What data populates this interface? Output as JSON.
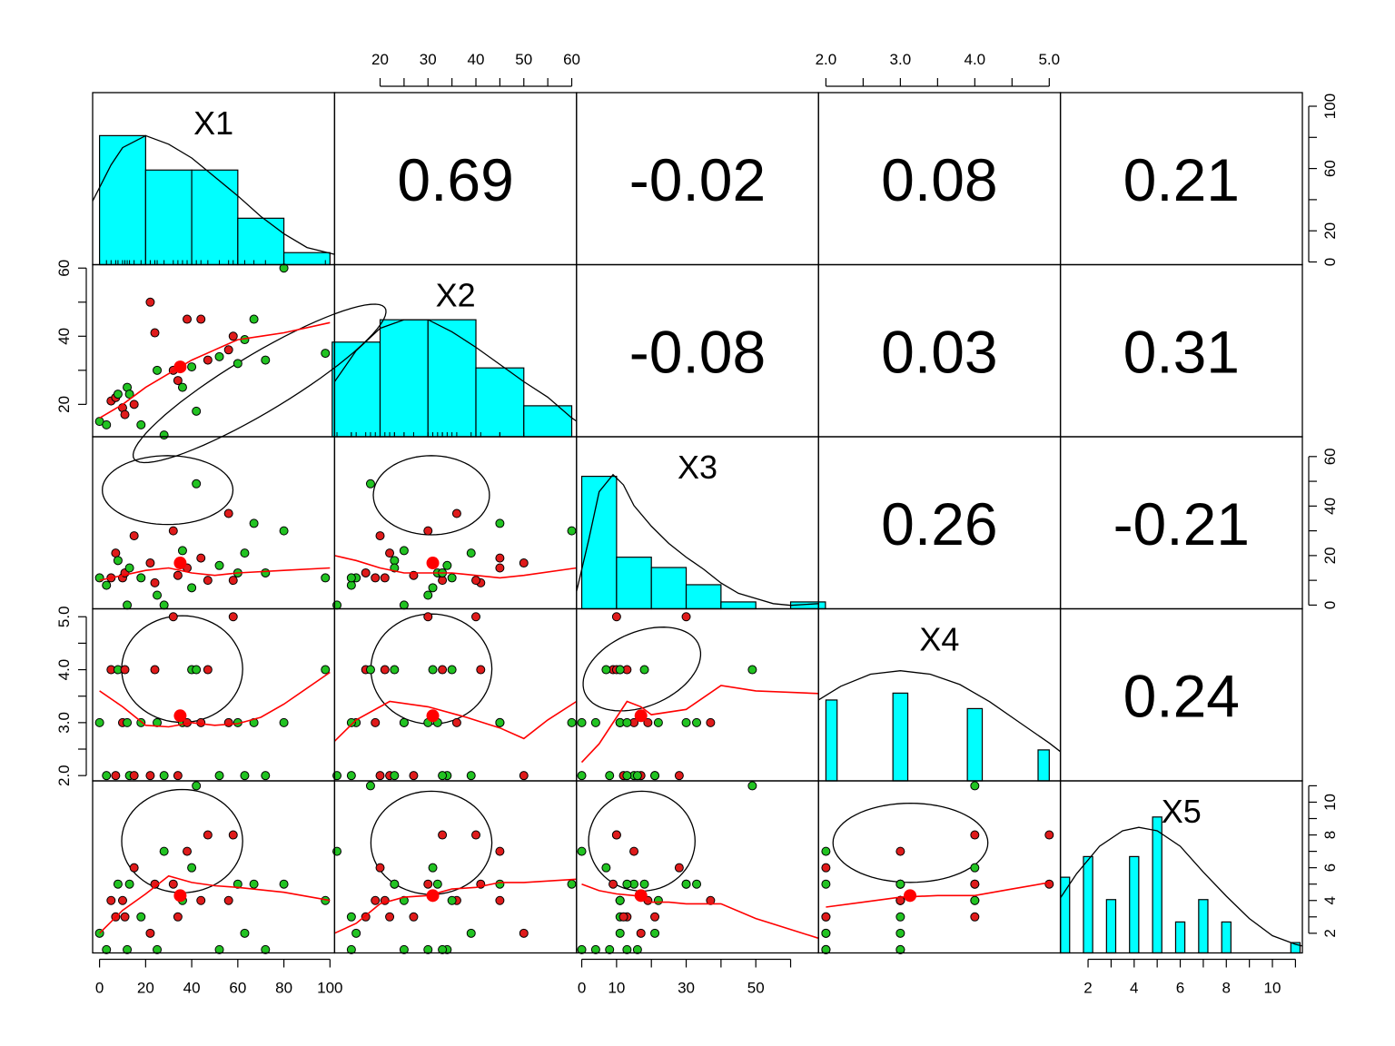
{
  "chart_data": {
    "type": "scatter",
    "kind": "pairs-panel (scatterplot matrix with histograms, density curves, loess fits, correlation ellipses and correlations)",
    "variables": [
      "X1",
      "X2",
      "X3",
      "X4",
      "X5"
    ],
    "ranges": {
      "X1": [
        -3,
        102
      ],
      "X2": [
        10.5,
        61
      ],
      "X3": [
        -1.5,
        68
      ],
      "X4": [
        1.9,
        5.15
      ],
      "X5": [
        0.8,
        11.3
      ]
    },
    "axes": {
      "bottom": [
        {
          "var": "X1",
          "ticks": [
            0,
            20,
            40,
            60,
            80,
            100
          ]
        },
        {
          "var": "X3",
          "ticks": [
            0,
            10,
            30,
            50
          ],
          "minor_ticks": [
            20,
            40,
            60
          ]
        },
        {
          "var": "X5",
          "ticks": [
            2,
            4,
            6,
            8,
            10
          ],
          "minor_ticks": [
            3,
            5,
            7,
            9,
            11
          ]
        }
      ],
      "top": [
        {
          "var": "X2",
          "ticks": [
            20,
            30,
            40,
            50,
            60
          ],
          "minor_ticks": [
            25,
            35,
            45,
            55
          ]
        },
        {
          "var": "X4",
          "ticks": [
            2.0,
            3.0,
            4.0,
            5.0
          ],
          "minor_ticks": [
            2.5,
            3.5,
            4.5
          ]
        }
      ],
      "left": [
        {
          "var": "X2",
          "ticks": [
            20,
            40,
            60
          ],
          "minor_ticks": [
            30,
            50
          ]
        },
        {
          "var": "X4",
          "ticks": [
            2.0,
            3.0,
            4.0,
            5.0
          ],
          "minor_ticks": [
            2.5,
            3.5,
            4.5
          ]
        }
      ],
      "right": [
        {
          "var": "X1",
          "ticks": [
            0,
            20,
            60,
            100
          ],
          "minor_ticks": [
            40,
            80
          ]
        },
        {
          "var": "X3",
          "ticks": [
            0,
            20,
            40,
            60
          ],
          "minor_ticks": [
            10,
            30,
            50
          ]
        },
        {
          "var": "X5",
          "ticks": [
            2,
            4,
            6,
            8,
            10
          ],
          "minor_ticks": [
            3,
            5,
            7,
            9,
            11
          ]
        }
      ]
    },
    "correlations": [
      {
        "row": 0,
        "col": 1,
        "value": "0.69"
      },
      {
        "row": 0,
        "col": 2,
        "value": "-0.02"
      },
      {
        "row": 0,
        "col": 3,
        "value": "0.08"
      },
      {
        "row": 0,
        "col": 4,
        "value": "0.21"
      },
      {
        "row": 1,
        "col": 2,
        "value": "-0.08"
      },
      {
        "row": 1,
        "col": 3,
        "value": "0.03"
      },
      {
        "row": 1,
        "col": 4,
        "value": "0.31"
      },
      {
        "row": 2,
        "col": 3,
        "value": "0.26"
      },
      {
        "row": 2,
        "col": 4,
        "value": "-0.21"
      },
      {
        "row": 3,
        "col": 4,
        "value": "0.24"
      }
    ],
    "histograms": {
      "X1": {
        "breaks": [
          0,
          20,
          40,
          60,
          80,
          100
        ],
        "heights": [
          0.75,
          0.55,
          0.55,
          0.27,
          0.07
        ]
      },
      "X2": {
        "breaks": [
          10,
          20,
          30,
          40,
          50,
          60
        ],
        "heights": [
          0.55,
          0.68,
          0.68,
          0.4,
          0.18
        ]
      },
      "X3": {
        "breaks": [
          0,
          10,
          20,
          30,
          40,
          50,
          60,
          70
        ],
        "heights": [
          0.77,
          0.3,
          0.24,
          0.14,
          0.04,
          0.0,
          0.04
        ]
      },
      "X4": {
        "breaks": [
          2.0,
          2.15,
          2.9,
          3.1,
          3.9,
          4.1,
          4.85,
          5.0
        ],
        "heights": [
          0.47,
          0.0,
          0.51,
          0.0,
          0.42,
          0.0,
          0.18
        ]
      },
      "X5": {
        "bars": [
          [
            1,
            0.44
          ],
          [
            2,
            0.56
          ],
          [
            3,
            0.31
          ],
          [
            4,
            0.56
          ],
          [
            5,
            0.79
          ],
          [
            6,
            0.18
          ],
          [
            7,
            0.31
          ],
          [
            8,
            0.18
          ],
          [
            11,
            0.06
          ]
        ],
        "width": 0.4
      }
    },
    "densities": {
      "X1": [
        [
          -3,
          0.37
        ],
        [
          5,
          0.58
        ],
        [
          10,
          0.68
        ],
        [
          20,
          0.75
        ],
        [
          30,
          0.7
        ],
        [
          40,
          0.62
        ],
        [
          50,
          0.51
        ],
        [
          60,
          0.4
        ],
        [
          70,
          0.28
        ],
        [
          80,
          0.18
        ],
        [
          90,
          0.1
        ],
        [
          102,
          0.06
        ]
      ],
      "X2": [
        [
          10.5,
          0.32
        ],
        [
          15,
          0.5
        ],
        [
          20,
          0.63
        ],
        [
          25,
          0.68
        ],
        [
          30,
          0.68
        ],
        [
          35,
          0.61
        ],
        [
          40,
          0.52
        ],
        [
          45,
          0.42
        ],
        [
          50,
          0.32
        ],
        [
          55,
          0.23
        ],
        [
          60,
          0.11
        ],
        [
          61,
          0.09
        ]
      ],
      "X3": [
        [
          -1.5,
          0.1
        ],
        [
          2,
          0.4
        ],
        [
          5,
          0.68
        ],
        [
          9,
          0.78
        ],
        [
          12,
          0.72
        ],
        [
          15,
          0.6
        ],
        [
          20,
          0.48
        ],
        [
          25,
          0.38
        ],
        [
          30,
          0.3
        ],
        [
          35,
          0.23
        ],
        [
          40,
          0.15
        ],
        [
          45,
          0.09
        ],
        [
          50,
          0.06
        ],
        [
          55,
          0.03
        ],
        [
          60,
          0.02
        ],
        [
          68,
          0.03
        ]
      ],
      "X4": [
        [
          1.9,
          0.47
        ],
        [
          2.2,
          0.55
        ],
        [
          2.6,
          0.62
        ],
        [
          3.0,
          0.64
        ],
        [
          3.4,
          0.62
        ],
        [
          3.8,
          0.56
        ],
        [
          4.2,
          0.46
        ],
        [
          4.6,
          0.34
        ],
        [
          5.0,
          0.22
        ],
        [
          5.15,
          0.17
        ]
      ],
      "X5": [
        [
          0.8,
          0.32
        ],
        [
          1.5,
          0.46
        ],
        [
          2.5,
          0.62
        ],
        [
          3.5,
          0.71
        ],
        [
          4.2,
          0.73
        ],
        [
          5,
          0.71
        ],
        [
          6,
          0.62
        ],
        [
          7,
          0.47
        ],
        [
          8,
          0.33
        ],
        [
          9,
          0.2
        ],
        [
          10,
          0.1
        ],
        [
          11,
          0.05
        ],
        [
          11.3,
          0.04
        ]
      ]
    },
    "observations": [
      {
        "X1": 0,
        "X2": 15,
        "X3": 11,
        "X4": 3,
        "X5": 2,
        "color": "green"
      },
      {
        "X1": 3,
        "X2": 14,
        "X3": 8,
        "X4": 2,
        "X5": 1,
        "color": "green"
      },
      {
        "X1": 5,
        "X2": 21,
        "X3": 11,
        "X4": 4,
        "X5": 4,
        "color": "red"
      },
      {
        "X1": 7,
        "X2": 22,
        "X3": 21,
        "X4": 2,
        "X5": 3,
        "color": "red"
      },
      {
        "X1": 8,
        "X2": 23,
        "X3": 18,
        "X4": 4,
        "X5": 5,
        "color": "green"
      },
      {
        "X1": 10,
        "X2": 19,
        "X3": 11,
        "X4": 3,
        "X5": 4,
        "color": "red"
      },
      {
        "X1": 11,
        "X2": 17,
        "X3": 13,
        "X4": 4,
        "X5": 3,
        "color": "red"
      },
      {
        "X1": 12,
        "X2": 25,
        "X3": 0,
        "X4": 3,
        "X5": 1,
        "color": "green"
      },
      {
        "X1": 13,
        "X2": 23,
        "X3": 15,
        "X4": 2,
        "X5": 5,
        "color": "green"
      },
      {
        "X1": 15,
        "X2": 20,
        "X3": 28,
        "X4": 2,
        "X5": 6,
        "color": "red"
      },
      {
        "X1": 18,
        "X2": 14,
        "X3": 11,
        "X4": 3,
        "X5": 3,
        "color": "green"
      },
      {
        "X1": 22,
        "X2": 50,
        "X3": 17,
        "X4": 2,
        "X5": 2,
        "color": "red"
      },
      {
        "X1": 24,
        "X2": 41,
        "X3": 9,
        "X4": 4,
        "X5": 5,
        "color": "red"
      },
      {
        "X1": 25,
        "X2": 30,
        "X3": 4,
        "X4": 3,
        "X5": 1,
        "color": "green"
      },
      {
        "X1": 28,
        "X2": 11,
        "X3": 0,
        "X4": 2,
        "X5": 7,
        "color": "green"
      },
      {
        "X1": 32,
        "X2": 30,
        "X3": 30,
        "X4": 5,
        "X5": 5,
        "color": "red"
      },
      {
        "X1": 34,
        "X2": 27,
        "X3": 12,
        "X4": 2,
        "X5": 3,
        "color": "red"
      },
      {
        "X1": 36,
        "X2": 25,
        "X3": 22,
        "X4": 3,
        "X5": 4,
        "color": "green"
      },
      {
        "X1": 38,
        "X2": 45,
        "X3": 15,
        "X4": 3,
        "X5": 7,
        "color": "red"
      },
      {
        "X1": 40,
        "X2": 31,
        "X3": 7,
        "X4": 4,
        "X5": 6,
        "color": "green"
      },
      {
        "X1": 42,
        "X2": 18,
        "X3": 49,
        "X4": 4,
        "X5": 11,
        "color": "green"
      },
      {
        "X1": 44,
        "X2": 45,
        "X3": 19,
        "X4": 3,
        "X5": 4,
        "color": "red"
      },
      {
        "X1": 47,
        "X2": 33,
        "X3": 10,
        "X4": 4,
        "X5": 8,
        "color": "red"
      },
      {
        "X1": 52,
        "X2": 34,
        "X3": 16,
        "X4": 2,
        "X5": 1,
        "color": "green"
      },
      {
        "X1": 56,
        "X2": 36,
        "X3": 37,
        "X4": 3,
        "X5": 4,
        "color": "red"
      },
      {
        "X1": 58,
        "X2": 40,
        "X3": 10,
        "X4": 5,
        "X5": 8,
        "color": "red"
      },
      {
        "X1": 60,
        "X2": 32,
        "X3": 13,
        "X4": 3,
        "X5": 5,
        "color": "green"
      },
      {
        "X1": 63,
        "X2": 39,
        "X3": 21,
        "X4": 2,
        "X5": 2,
        "color": "green"
      },
      {
        "X1": 67,
        "X2": 45,
        "X3": 33,
        "X4": 3,
        "X5": 5,
        "color": "green"
      },
      {
        "X1": 72,
        "X2": 33,
        "X3": 13,
        "X4": 2,
        "X5": 1,
        "color": "green"
      },
      {
        "X1": 80,
        "X2": 60,
        "X3": 30,
        "X4": 3,
        "X5": 5,
        "color": "green"
      },
      {
        "X1": 98,
        "X2": 35,
        "X3": 11,
        "X4": 4,
        "X5": 4,
        "color": "green"
      }
    ],
    "means": {
      "X1": 35,
      "X2": 31,
      "X3": 17,
      "X4": 3.13,
      "X5": 4.3
    },
    "smoothers": {
      "1-0": [
        [
          0,
          16
        ],
        [
          10,
          20
        ],
        [
          20,
          25
        ],
        [
          30,
          29
        ],
        [
          40,
          33
        ],
        [
          50,
          36
        ],
        [
          60,
          39
        ],
        [
          70,
          40
        ],
        [
          80,
          41
        ],
        [
          100,
          44
        ]
      ],
      "2-0": [
        [
          0,
          10
        ],
        [
          10,
          12
        ],
        [
          20,
          14
        ],
        [
          30,
          15
        ],
        [
          40,
          13
        ],
        [
          50,
          12
        ],
        [
          60,
          13
        ],
        [
          80,
          14
        ],
        [
          100,
          15
        ]
      ],
      "2-1": [
        [
          10.5,
          20
        ],
        [
          15,
          18
        ],
        [
          20,
          15
        ],
        [
          25,
          13
        ],
        [
          30,
          13
        ],
        [
          35,
          13
        ],
        [
          40,
          12
        ],
        [
          45,
          11
        ],
        [
          50,
          12
        ],
        [
          61,
          15
        ]
      ],
      "3-0": [
        [
          0,
          3.6
        ],
        [
          10,
          3.3
        ],
        [
          20,
          2.95
        ],
        [
          30,
          2.92
        ],
        [
          40,
          3.0
        ],
        [
          50,
          2.95
        ],
        [
          60,
          2.98
        ],
        [
          70,
          3.1
        ],
        [
          80,
          3.35
        ],
        [
          100,
          3.95
        ]
      ],
      "3-1": [
        [
          10.5,
          2.65
        ],
        [
          15,
          3.05
        ],
        [
          22,
          3.4
        ],
        [
          30,
          3.3
        ],
        [
          38,
          3.1
        ],
        [
          45,
          2.9
        ],
        [
          50,
          2.7
        ],
        [
          55,
          3.05
        ],
        [
          61,
          3.4
        ]
      ],
      "3-2": [
        [
          0,
          2.25
        ],
        [
          5,
          2.6
        ],
        [
          10,
          3.1
        ],
        [
          13,
          3.4
        ],
        [
          17,
          3.3
        ],
        [
          20,
          3.15
        ],
        [
          30,
          3.25
        ],
        [
          40,
          3.7
        ],
        [
          50,
          3.6
        ],
        [
          68,
          3.55
        ]
      ],
      "4-0": [
        [
          0,
          2.0
        ],
        [
          10,
          3.4
        ],
        [
          20,
          4.4
        ],
        [
          30,
          5.5
        ],
        [
          40,
          5.1
        ],
        [
          50,
          4.9
        ],
        [
          60,
          4.8
        ],
        [
          80,
          4.5
        ],
        [
          100,
          4.0
        ]
      ],
      "4-1": [
        [
          10.5,
          2.0
        ],
        [
          15,
          2.6
        ],
        [
          20,
          3.8
        ],
        [
          25,
          4.2
        ],
        [
          30,
          4.3
        ],
        [
          35,
          4.7
        ],
        [
          40,
          4.8
        ],
        [
          45,
          5.1
        ],
        [
          50,
          5.1
        ],
        [
          61,
          5.3
        ]
      ],
      "4-2": [
        [
          0,
          5.0
        ],
        [
          5,
          4.6
        ],
        [
          10,
          4.4
        ],
        [
          15,
          4.3
        ],
        [
          20,
          3.9
        ],
        [
          25,
          3.9
        ],
        [
          30,
          3.8
        ],
        [
          40,
          3.8
        ],
        [
          50,
          2.9
        ],
        [
          68,
          1.7
        ]
      ],
      "4-3": [
        [
          2,
          3.6
        ],
        [
          2.5,
          3.9
        ],
        [
          3,
          4.2
        ],
        [
          3.5,
          4.3
        ],
        [
          4,
          4.3
        ],
        [
          4.5,
          4.7
        ],
        [
          5,
          5.1
        ]
      ]
    },
    "ellipses": {
      "1-0": {
        "ux": 0.69,
        "uy": 0.69,
        "cos": 0.76,
        "sin": 0.65,
        "ra": 0.68,
        "rb": 0.17
      },
      "2-0": {
        "ux": 0.31,
        "uy": 0.31,
        "cos": 1,
        "sin": 0,
        "ra": 0.27,
        "rb": 0.2
      },
      "2-1": {
        "ux": 0.4,
        "uy": 0.34,
        "cos": 1,
        "sin": 0,
        "ra": 0.24,
        "rb": 0.23
      },
      "3-0": {
        "ux": 0.37,
        "uy": 0.35,
        "cos": 1,
        "sin": 0,
        "ra": 0.25,
        "rb": 0.31
      },
      "3-1": {
        "ux": 0.4,
        "uy": 0.35,
        "cos": 1,
        "sin": 0,
        "ra": 0.25,
        "rb": 0.32
      },
      "3-2": {
        "ux": 0.27,
        "uy": 0.35,
        "cos": 0.8,
        "sin": 0.6,
        "ra": 0.28,
        "rb": 0.22
      },
      "4-0": {
        "ux": 0.37,
        "uy": 0.35,
        "cos": 1,
        "sin": 0,
        "ra": 0.25,
        "rb": 0.3
      },
      "4-1": {
        "ux": 0.4,
        "uy": 0.36,
        "cos": 1,
        "sin": 0,
        "ra": 0.25,
        "rb": 0.3
      },
      "4-2": {
        "ux": 0.27,
        "uy": 0.35,
        "cos": 1,
        "sin": 0,
        "ra": 0.22,
        "rb": 0.29
      },
      "4-3": {
        "ux": 0.38,
        "uy": 0.36,
        "cos": 1,
        "sin": 0,
        "ra": 0.32,
        "rb": 0.23
      }
    },
    "colors": {
      "hist_fill": "#00FFFF",
      "point_red": "#DF1B1B",
      "point_green": "#22C322",
      "point_edge": "#000000",
      "smoother": "#FF0000",
      "mean_point": "#FF0000",
      "lines": "#000000"
    },
    "grid": false
  }
}
